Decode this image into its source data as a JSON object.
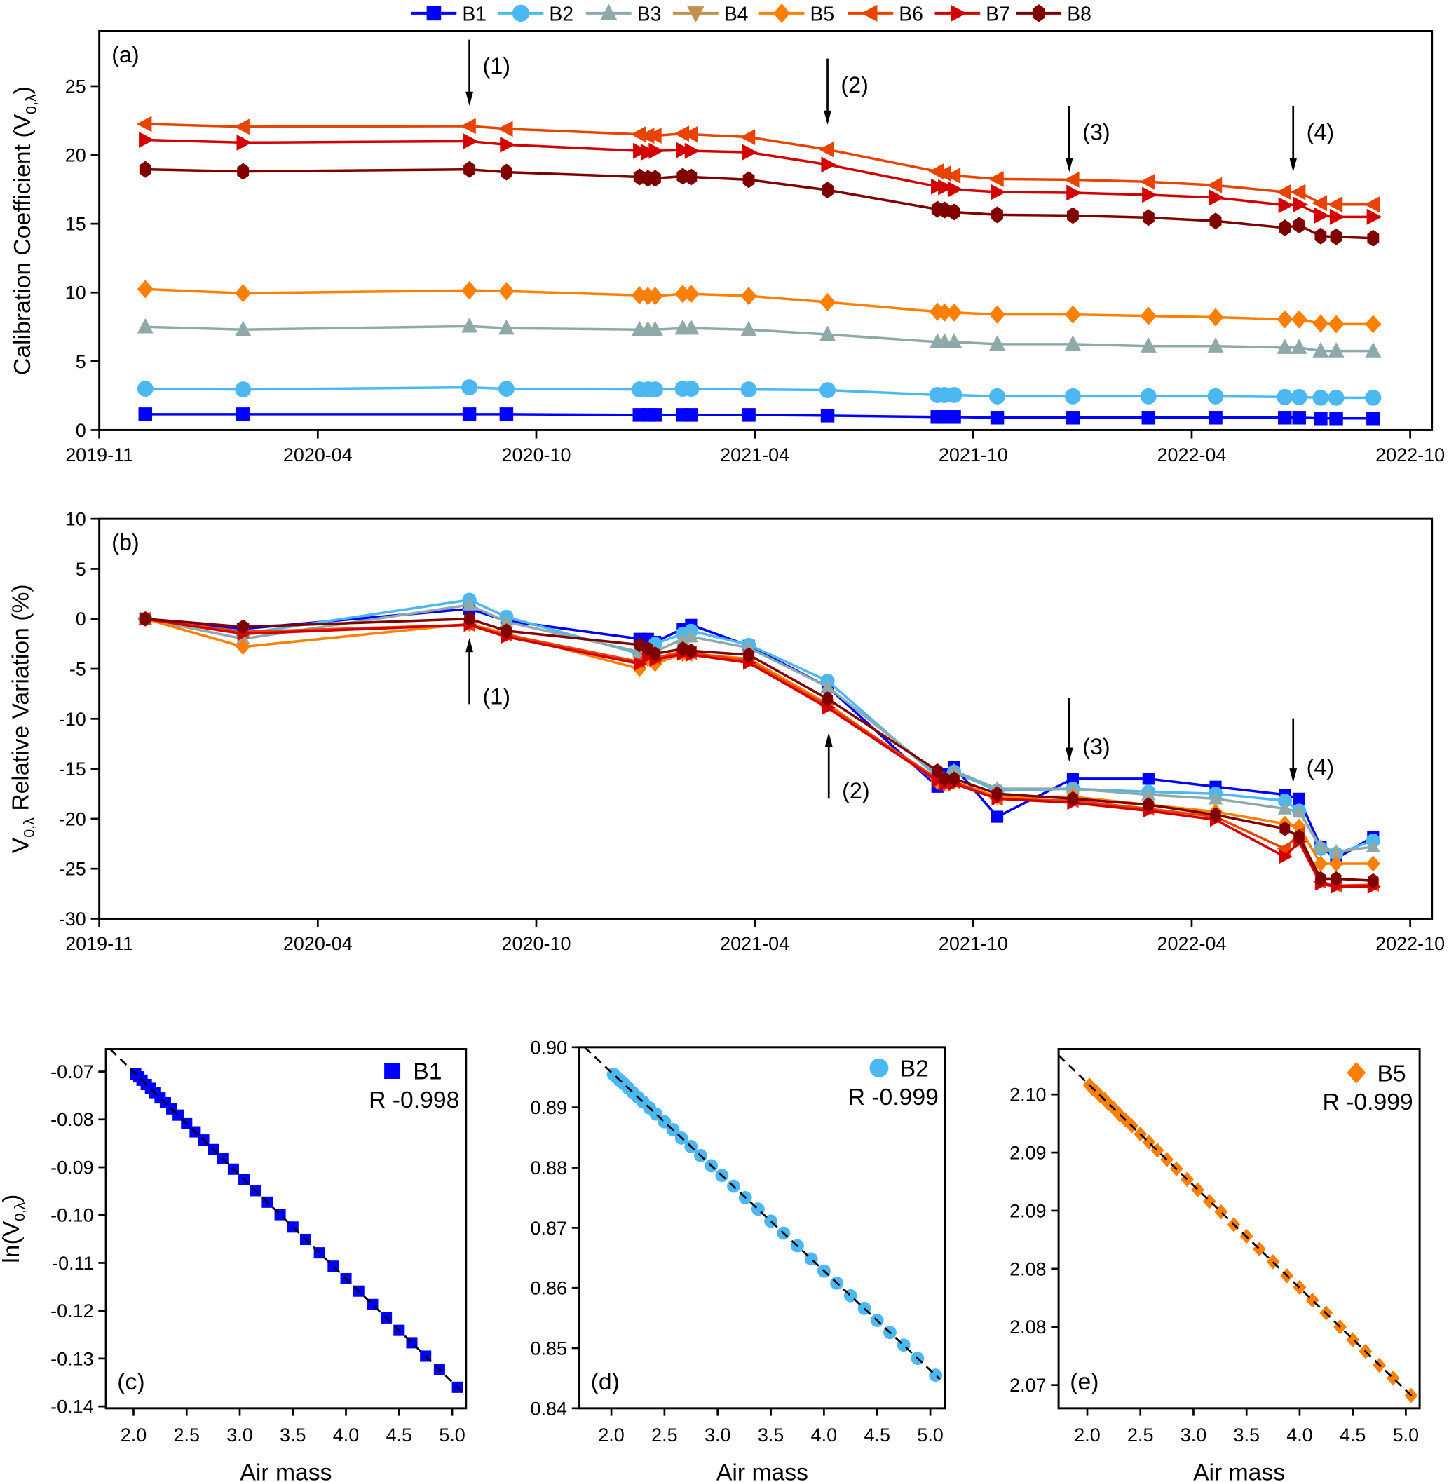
{
  "legend": [
    {
      "name": "B1",
      "marker": "square",
      "color": "#0000ff"
    },
    {
      "name": "B2",
      "marker": "circle",
      "color": "#4cb8f2"
    },
    {
      "name": "B3",
      "marker": "triangle-up",
      "color": "#8ea9a8"
    },
    {
      "name": "B4",
      "marker": "triangle-down",
      "color": "#c0904c"
    },
    {
      "name": "B5",
      "marker": "diamond",
      "color": "#ff8000"
    },
    {
      "name": "B6",
      "marker": "triangle-left",
      "color": "#e84400"
    },
    {
      "name": "B7",
      "marker": "triangle-right",
      "color": "#d40000"
    },
    {
      "name": "B8",
      "marker": "hexagon",
      "color": "#800000"
    }
  ],
  "chart_data": [
    {
      "type": "line",
      "panel_label": "(a)",
      "ylabel": {
        "text": "Calibration Coefficient (V",
        "sub": "0,λ",
        "rest": ")"
      },
      "x_ticks": [
        "2019-11",
        "2020-04",
        "2020-10",
        "2021-04",
        "2021-10",
        "2022-04",
        "2022-10"
      ],
      "y_ticks": [
        0,
        5,
        10,
        15,
        20,
        25
      ],
      "ylim": [
        0,
        29
      ],
      "annotations": [
        {
          "label": "(1)",
          "date": "2020-08-06",
          "dir": "down"
        },
        {
          "label": "(2)",
          "date": "2021-06-01",
          "dir": "down"
        },
        {
          "label": "(3)",
          "date": "2021-12-20",
          "dir": "down"
        },
        {
          "label": "(4)",
          "date": "2022-06-25",
          "dir": "down"
        }
      ],
      "dates": [
        "2019-12-03",
        "2020-02-09",
        "2020-08-06",
        "2020-09-06",
        "2020-12-26",
        "2021-01-02",
        "2021-01-08",
        "2021-01-31",
        "2021-02-07",
        "2021-03-27",
        "2021-06-01",
        "2021-09-01",
        "2021-09-07",
        "2021-09-15",
        "2021-10-21",
        "2021-12-23",
        "2022-02-24",
        "2022-04-21",
        "2022-06-18",
        "2022-06-30",
        "2022-07-18",
        "2022-07-31",
        "2022-08-31"
      ],
      "series": [
        {
          "name": "B1",
          "values": [
            1.15,
            1.15,
            1.15,
            1.15,
            1.1,
            1.1,
            1.1,
            1.1,
            1.1,
            1.1,
            1.05,
            0.95,
            0.95,
            0.95,
            0.9,
            0.9,
            0.9,
            0.9,
            0.9,
            0.9,
            0.85,
            0.85,
            0.85
          ]
        },
        {
          "name": "B2",
          "values": [
            3.0,
            2.95,
            3.1,
            3.0,
            2.95,
            2.95,
            2.95,
            3.0,
            3.0,
            2.95,
            2.9,
            2.55,
            2.55,
            2.55,
            2.45,
            2.45,
            2.45,
            2.45,
            2.4,
            2.4,
            2.35,
            2.35,
            2.35
          ]
        },
        {
          "name": "B3",
          "values": [
            7.5,
            7.3,
            7.55,
            7.4,
            7.3,
            7.3,
            7.3,
            7.4,
            7.4,
            7.3,
            6.95,
            6.4,
            6.4,
            6.4,
            6.25,
            6.25,
            6.1,
            6.1,
            6.0,
            6.0,
            5.75,
            5.75,
            5.75
          ]
        },
        {
          "name": "B4",
          "values": null
        },
        {
          "name": "B5",
          "values": [
            10.25,
            9.95,
            10.15,
            10.1,
            9.8,
            9.75,
            9.75,
            9.9,
            9.9,
            9.75,
            9.3,
            8.6,
            8.55,
            8.55,
            8.4,
            8.4,
            8.3,
            8.2,
            8.05,
            8.05,
            7.75,
            7.7,
            7.7
          ]
        },
        {
          "name": "B6",
          "values": [
            22.25,
            22.05,
            22.1,
            21.9,
            21.5,
            21.4,
            21.4,
            21.55,
            21.5,
            21.3,
            20.4,
            18.8,
            18.65,
            18.5,
            18.25,
            18.2,
            18.05,
            17.8,
            17.3,
            17.3,
            16.5,
            16.4,
            16.4
          ]
        },
        {
          "name": "B7",
          "values": [
            21.1,
            20.9,
            21.0,
            20.75,
            20.3,
            20.2,
            20.3,
            20.35,
            20.3,
            20.2,
            19.3,
            17.7,
            17.65,
            17.5,
            17.3,
            17.25,
            17.1,
            16.9,
            16.35,
            16.4,
            15.6,
            15.5,
            15.5
          ]
        },
        {
          "name": "B8",
          "values": [
            18.95,
            18.8,
            18.95,
            18.75,
            18.4,
            18.3,
            18.3,
            18.45,
            18.4,
            18.2,
            17.45,
            16.05,
            16.0,
            15.85,
            15.65,
            15.6,
            15.45,
            15.2,
            14.7,
            14.9,
            14.1,
            14.05,
            13.95
          ]
        }
      ]
    },
    {
      "type": "line",
      "panel_label": "(b)",
      "ylabel": {
        "text": "V",
        "sub": "0,λ",
        "rest": " Relative Variation (%)"
      },
      "x_ticks": [
        "2019-11",
        "2020-04",
        "2020-10",
        "2021-04",
        "2021-10",
        "2022-04",
        "2022-10"
      ],
      "y_ticks": [
        -30,
        -25,
        -20,
        -15,
        -10,
        -5,
        0,
        5,
        10
      ],
      "ylim": [
        -30,
        10
      ],
      "annotations": [
        {
          "label": "(1)",
          "date": "2020-08-06",
          "dir": "up"
        },
        {
          "label": "(2)",
          "date": "2021-06-02",
          "dir": "up"
        },
        {
          "label": "(3)",
          "date": "2021-12-20",
          "dir": "down"
        },
        {
          "label": "(4)",
          "date": "2022-06-25",
          "dir": "down"
        }
      ],
      "dates": [
        "2019-12-03",
        "2020-02-09",
        "2020-08-06",
        "2020-09-06",
        "2020-12-26",
        "2021-01-02",
        "2021-01-08",
        "2021-01-31",
        "2021-02-07",
        "2021-03-27",
        "2021-06-01",
        "2021-09-01",
        "2021-09-07",
        "2021-09-15",
        "2021-10-21",
        "2021-12-23",
        "2022-02-24",
        "2022-04-21",
        "2022-06-18",
        "2022-06-30",
        "2022-07-18",
        "2022-07-31",
        "2022-08-31"
      ],
      "series": [
        {
          "name": "B1",
          "values": [
            0,
            -1.0,
            1.0,
            -0.2,
            -2.0,
            -2.0,
            -2.3,
            -1.0,
            -0.6,
            -2.7,
            -6.8,
            -16.8,
            -15.5,
            -14.8,
            -19.8,
            -16.0,
            -16.0,
            -16.8,
            -17.6,
            -18.0,
            -22.8,
            -24.0,
            -21.8
          ]
        },
        {
          "name": "B2",
          "values": [
            0,
            -1.5,
            1.9,
            0.2,
            -3.5,
            -3.2,
            -2.5,
            -1.5,
            -1.2,
            -2.6,
            -6.2,
            -15.8,
            -16.0,
            -15.3,
            -17.2,
            -17.0,
            -17.3,
            -17.5,
            -18.2,
            -19.2,
            -23.0,
            -23.5,
            -22.2
          ]
        },
        {
          "name": "B3",
          "values": [
            0,
            -2.0,
            1.4,
            -0.3,
            -3.3,
            -3.0,
            -3.3,
            -2.0,
            -1.8,
            -2.9,
            -6.8,
            -15.5,
            -16.0,
            -15.2,
            -17.0,
            -17.0,
            -17.6,
            -18.0,
            -19.0,
            -19.3,
            -22.8,
            -23.3,
            -22.8
          ]
        },
        {
          "name": "B4",
          "values": null
        },
        {
          "name": "B5",
          "values": [
            0,
            -2.8,
            -0.5,
            -1.5,
            -5.0,
            -4.0,
            -4.5,
            -3.5,
            -3.5,
            -4.0,
            -8.5,
            -16.3,
            -16.5,
            -16.3,
            -17.8,
            -17.8,
            -18.6,
            -19.3,
            -20.5,
            -20.8,
            -24.5,
            -24.5,
            -24.5
          ]
        },
        {
          "name": "B6",
          "values": [
            0,
            -1.3,
            -0.6,
            -1.6,
            -4.3,
            -3.5,
            -3.9,
            -3.3,
            -3.4,
            -4.2,
            -8.7,
            -16.0,
            -16.5,
            -16.3,
            -18.0,
            -18.2,
            -19.0,
            -19.8,
            -23.0,
            -21.5,
            -26.3,
            -26.7,
            -26.6
          ]
        },
        {
          "name": "B7",
          "values": [
            0,
            -1.5,
            -0.6,
            -1.8,
            -4.5,
            -3.8,
            -4.1,
            -3.5,
            -3.6,
            -4.4,
            -8.9,
            -16.2,
            -16.6,
            -16.5,
            -18.0,
            -18.4,
            -19.2,
            -20.1,
            -23.8,
            -22.3,
            -26.5,
            -26.8,
            -26.8
          ]
        },
        {
          "name": "B8",
          "values": [
            0,
            -0.8,
            0.0,
            -1.2,
            -2.6,
            -3.0,
            -3.5,
            -3.0,
            -3.2,
            -3.6,
            -8.0,
            -15.2,
            -16.0,
            -16.0,
            -17.5,
            -18.0,
            -18.6,
            -19.6,
            -21.0,
            -21.8,
            -26.0,
            -26.0,
            -26.2
          ]
        }
      ]
    },
    {
      "type": "scatter",
      "panel_label": "(c)",
      "series_name": "B1",
      "r_label": "R -0.998",
      "fit_line": "dashed",
      "xlabel": "Air mass",
      "ylabel": {
        "text": "ln(V",
        "sub": "0,λ",
        "rest": ")"
      },
      "xlim": [
        1.74,
        5.13
      ],
      "ylim": [
        -0.1404,
        -0.0653
      ],
      "x_ticks": [
        2.0,
        2.5,
        3.0,
        3.5,
        4.0,
        4.5,
        5.0
      ],
      "x_tick_labels": [
        "2.0",
        "2.5",
        "3.0",
        "3.5",
        "4.0",
        "4.5",
        "5.0"
      ],
      "y_ticks": [
        -0.07,
        -0.08,
        -0.09,
        -0.1,
        -0.11,
        -0.12,
        -0.13,
        -0.14
      ],
      "y_tick_labels": [
        "-0.07",
        "-0.08",
        "-0.09",
        "-0.10",
        "-0.11",
        "-0.12",
        "-0.13",
        "-0.14"
      ],
      "x": [
        2.02,
        2.05,
        2.08,
        2.12,
        2.16,
        2.2,
        2.25,
        2.3,
        2.36,
        2.42,
        2.5,
        2.58,
        2.66,
        2.75,
        2.84,
        2.94,
        3.04,
        3.15,
        3.26,
        3.38,
        3.5,
        3.62,
        3.75,
        3.88,
        4.0,
        4.12,
        4.25,
        4.38,
        4.5,
        4.62,
        4.75,
        4.88,
        5.05
      ],
      "y": [
        -0.0705,
        -0.0711,
        -0.0718,
        -0.0727,
        -0.0735,
        -0.0744,
        -0.0755,
        -0.0765,
        -0.0778,
        -0.0791,
        -0.0809,
        -0.0826,
        -0.0843,
        -0.0863,
        -0.0882,
        -0.0904,
        -0.0925,
        -0.0949,
        -0.0973,
        -0.0999,
        -0.1025,
        -0.1051,
        -0.1079,
        -0.1107,
        -0.1133,
        -0.1159,
        -0.1187,
        -0.1215,
        -0.1241,
        -0.1267,
        -0.1295,
        -0.1323,
        -0.136
      ]
    },
    {
      "type": "scatter",
      "panel_label": "(d)",
      "series_name": "B2",
      "r_label": "R -0.999",
      "fit_line": "dashed",
      "xlabel": "Air mass",
      "xlim": [
        1.7,
        5.14
      ],
      "ylim": [
        0.84,
        0.9
      ],
      "x_ticks": [
        2.0,
        2.5,
        3.0,
        3.5,
        4.0,
        4.5,
        5.0
      ],
      "x_tick_labels": [
        "2.0",
        "2.5",
        "3.0",
        "3.5",
        "4.0",
        "4.5",
        "5.0"
      ],
      "y_ticks": [
        0.9,
        0.89,
        0.88,
        0.87,
        0.86,
        0.85,
        0.84
      ],
      "y_tick_labels": [
        "0.90",
        "0.89",
        "0.88",
        "0.87",
        "0.86",
        "0.85",
        "0.84"
      ],
      "x": [
        2.02,
        2.05,
        2.08,
        2.12,
        2.16,
        2.2,
        2.25,
        2.3,
        2.36,
        2.42,
        2.5,
        2.58,
        2.66,
        2.75,
        2.84,
        2.94,
        3.04,
        3.15,
        3.26,
        3.38,
        3.5,
        3.62,
        3.75,
        3.88,
        4.0,
        4.12,
        4.25,
        4.38,
        4.5,
        4.62,
        4.75,
        4.88,
        5.05
      ],
      "y": [
        0.8955,
        0.895,
        0.8945,
        0.8939,
        0.8932,
        0.8925,
        0.8917,
        0.8909,
        0.8899,
        0.8889,
        0.8876,
        0.8863,
        0.8849,
        0.8835,
        0.882,
        0.8803,
        0.8787,
        0.8769,
        0.875,
        0.8731,
        0.8711,
        0.8691,
        0.867,
        0.8648,
        0.8628,
        0.8608,
        0.8587,
        0.8566,
        0.8546,
        0.8526,
        0.8505,
        0.8483,
        0.8455
      ]
    },
    {
      "type": "scatter",
      "panel_label": "(e)",
      "series_name": "B5",
      "r_label": "R -0.999",
      "fit_line": "dashed",
      "xlabel": "Air mass",
      "xlim": [
        1.73,
        5.13
      ],
      "ylim": [
        2.073,
        2.1039
      ],
      "x_ticks": [
        2.0,
        2.5,
        3.0,
        3.5,
        4.0,
        4.5,
        5.0
      ],
      "x_tick_labels": [
        "2.0",
        "2.5",
        "3.0",
        "3.5",
        "4.0",
        "4.5",
        "5.0"
      ],
      "y_ticks": [
        2.1,
        2.095,
        2.09,
        2.085,
        2.08,
        2.075
      ],
      "y_tick_labels": [
        "2.10",
        "2.09",
        "2.09",
        "2.08",
        "2.08",
        "2.07"
      ],
      "x": [
        2.02,
        2.05,
        2.08,
        2.12,
        2.16,
        2.2,
        2.25,
        2.3,
        2.36,
        2.42,
        2.5,
        2.58,
        2.66,
        2.75,
        2.84,
        2.94,
        3.04,
        3.15,
        3.26,
        3.38,
        3.5,
        3.62,
        3.75,
        3.88,
        4.0,
        4.12,
        4.25,
        4.38,
        4.5,
        4.62,
        4.75,
        4.88,
        5.05
      ],
      "y": [
        2.1008,
        2.1005,
        2.1003,
        2.0999,
        2.0996,
        2.0992,
        2.0988,
        2.0983,
        2.0978,
        2.0973,
        2.0966,
        2.0959,
        2.0952,
        2.0944,
        2.0936,
        2.0927,
        2.0918,
        2.0908,
        2.0899,
        2.0888,
        2.0878,
        2.0867,
        2.0856,
        2.0844,
        2.0834,
        2.0823,
        2.0812,
        2.08,
        2.0789,
        2.0779,
        2.0767,
        2.0756,
        2.0741
      ]
    }
  ]
}
